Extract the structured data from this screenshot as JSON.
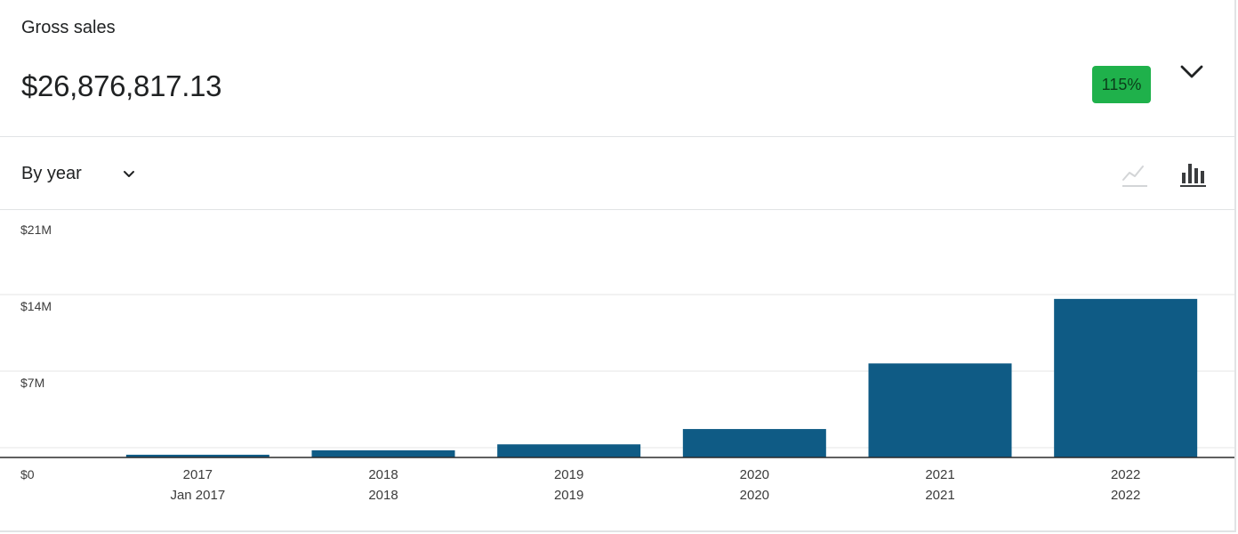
{
  "metric": {
    "label": "Gross sales",
    "value": "$26,876,817.13",
    "change_badge": "115%",
    "badge_color": "#1fb14b"
  },
  "toolbar": {
    "period_label": "By year",
    "line_view_icon": "line-chart-icon",
    "bar_view_icon": "bar-chart-icon",
    "active_view": "bar"
  },
  "colors": {
    "bar": "#0f5b85",
    "grid": "#e6e6e6",
    "axis": "#2b2b2b"
  },
  "chart_data": {
    "type": "bar",
    "categories": [
      "2017",
      "2018",
      "2019",
      "2020",
      "2021",
      "2022"
    ],
    "sub_labels": [
      "Jan 2017",
      "2018",
      "2019",
      "2020",
      "2021",
      "2022"
    ],
    "values": [
      0.25,
      0.65,
      1.2,
      2.6,
      8.6,
      14.5
    ],
    "unit": "$M",
    "ylim": [
      0,
      21
    ],
    "yticks": [
      0,
      7,
      14,
      21
    ],
    "ytick_labels": [
      "$0",
      "$7M",
      "$14M",
      "$21M"
    ],
    "grid": true
  }
}
